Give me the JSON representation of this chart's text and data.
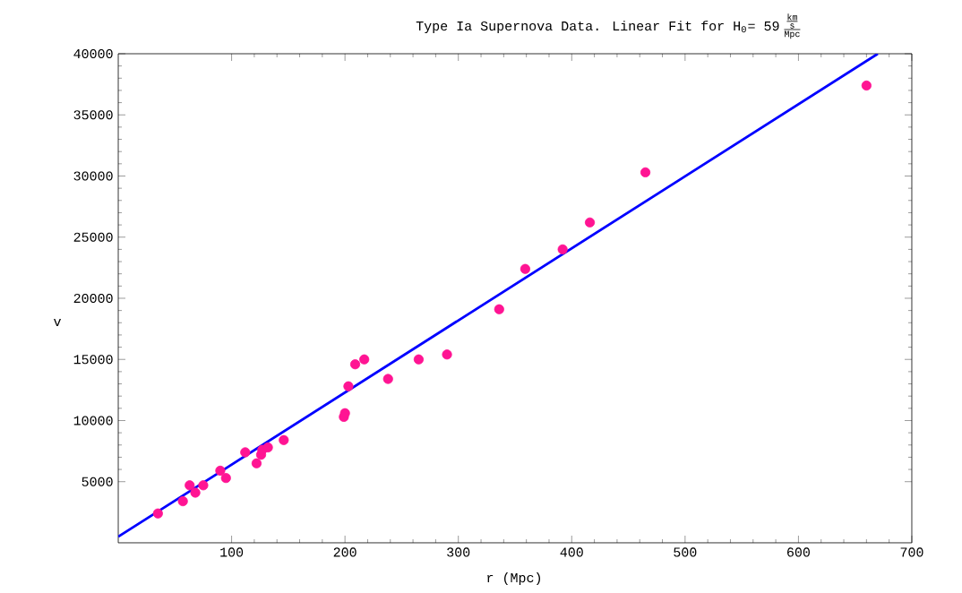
{
  "chart_data": {
    "type": "scatter",
    "title": "Type Ia Supernova Data. Linear Fit for H$_{0}$= 59",
    "annotations": [
      "\\frac{\\frac{\\mathrm{km}}{\\mathrm{s}}}{\\mathrm{Mpc}}"
    ],
    "xlabel": "r (Mpc)",
    "ylabel": "v",
    "xlim": [
      0,
      700
    ],
    "ylim": [
      0,
      40000
    ],
    "xticks": [
      100,
      200,
      300,
      400,
      500,
      600,
      700
    ],
    "yticks": [
      5000,
      10000,
      15000,
      20000,
      25000,
      30000,
      35000,
      40000
    ],
    "series": [
      {
        "marker": "circle",
        "color": "#ff1493",
        "x": [
          35,
          57,
          63,
          68,
          75,
          90,
          95,
          112,
          122,
          126,
          127,
          132,
          146,
          199,
          200,
          203,
          209,
          217,
          238,
          265,
          290,
          336,
          359,
          392,
          416,
          465,
          660
        ],
        "values": [
          2400,
          3400,
          4700,
          4100,
          4700,
          5900,
          5300,
          7400,
          6500,
          7200,
          7600,
          7800,
          8400,
          10300,
          10600,
          12800,
          14600,
          15000,
          13400,
          15000,
          15400,
          19100,
          22400,
          24000,
          26200,
          30300,
          37400
        ]
      },
      {
        "type": "line",
        "marker": "none",
        "line_style": "solid",
        "color": "#0000ff",
        "x": [
          0,
          290,
          670
        ],
        "values": [
          500,
          17600,
          40000
        ]
      }
    ]
  }
}
